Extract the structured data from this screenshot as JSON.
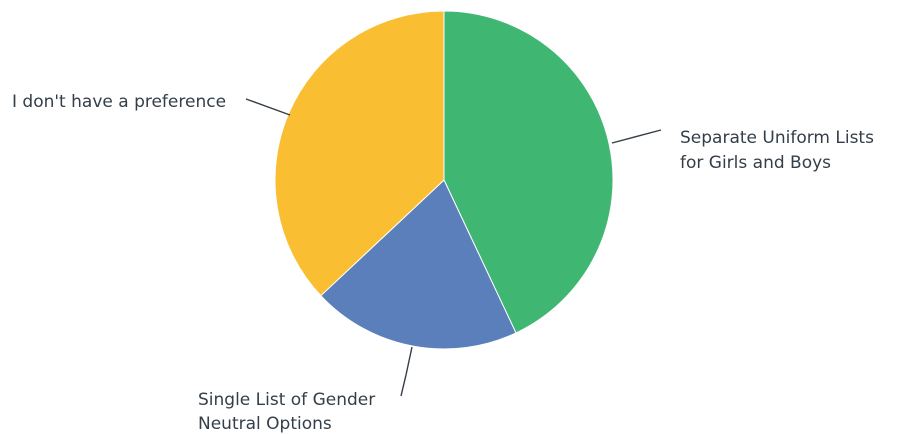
{
  "chart_data": {
    "type": "pie",
    "slices": [
      {
        "label": [
          "Separate Uniform Lists",
          "for Girls and Boys"
        ],
        "value": 43,
        "color": "#3fb772"
      },
      {
        "label": [
          "Single List of Gender",
          "Neutral Options"
        ],
        "value": 20,
        "color": "#5a7fbb"
      },
      {
        "label": [
          "I don't have a preference"
        ],
        "value": 37,
        "color": "#f9be32"
      }
    ],
    "start_angle_deg": 0,
    "direction": "clockwise",
    "legend": "none"
  }
}
